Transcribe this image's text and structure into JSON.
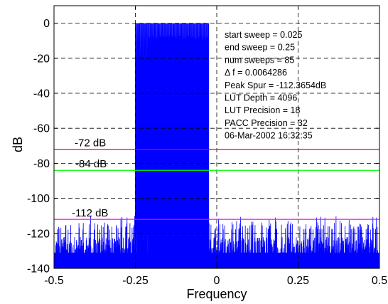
{
  "chart_data": {
    "type": "line",
    "title": "",
    "xlabel": "Frequency",
    "ylabel": "dB",
    "xlim": [
      -0.5,
      0.5
    ],
    "ylim": [
      -140,
      10
    ],
    "x_ticks": [
      "-0.5",
      "-0.25",
      "0",
      "0.25",
      "0.5"
    ],
    "x_tick_values": [
      -0.5,
      -0.25,
      0,
      0.25,
      0.5
    ],
    "y_ticks": [
      "0",
      "-20",
      "-40",
      "-60",
      "-80",
      "-100",
      "-120",
      "-140"
    ],
    "y_tick_values": [
      0,
      -20,
      -40,
      -60,
      -80,
      -100,
      -120,
      -140
    ],
    "grid": true,
    "grid_style": "dashed",
    "series": [
      {
        "color": "#0000ff",
        "passband": {
          "x_start": -0.25,
          "x_end": -0.025,
          "num_tones": 85,
          "peak_db": 0
        },
        "noise_floor_db": [
          -140,
          -110
        ]
      }
    ],
    "reference_lines": [
      {
        "y": -72,
        "label": "-72 dB",
        "color": "#ff0000"
      },
      {
        "y": -84,
        "label": "-84 dB",
        "color": "#00ff00"
      },
      {
        "y": -112,
        "label": "-112 dB",
        "color": "#ff00ff"
      }
    ],
    "annotations": [
      "start sweep = 0.025",
      "end sweep = 0.25",
      "num sweeps = 85",
      "Δ f = 0.0064286",
      "Peak Spur = -112.3654dB",
      "LUT Depth = 4096",
      "LUT Precision = 18",
      "PACC Precision = 32",
      "06-Mar-2002 16:32:35"
    ]
  }
}
